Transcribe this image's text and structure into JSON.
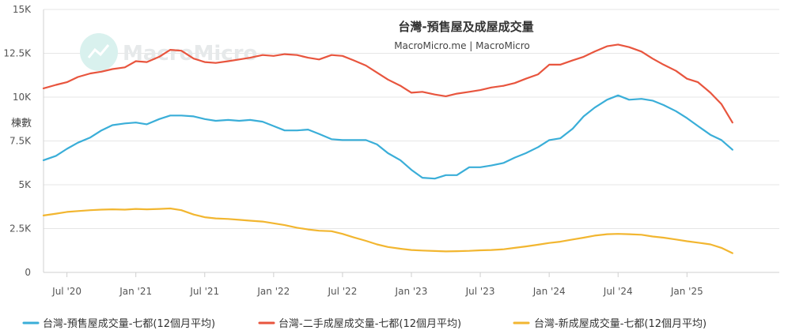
{
  "chart_data": {
    "type": "line",
    "title": "台灣-預售屋及成屋成交量",
    "subtitle": "MacroMicro.me | MacroMicro",
    "ylabel": "棟數",
    "watermark": "MacroMicro",
    "y_ticks": [
      "0",
      "2.5K",
      "5K",
      "7.5K",
      "10K",
      "12.5K",
      "15K"
    ],
    "ylim": [
      0,
      15000
    ],
    "x_ticks": [
      {
        "label": "Jul '20",
        "x": 2020.5
      },
      {
        "label": "Jan '21",
        "x": 2021.0
      },
      {
        "label": "Jul '21",
        "x": 2021.5
      },
      {
        "label": "Jan '22",
        "x": 2022.0
      },
      {
        "label": "Jul '22",
        "x": 2022.5
      },
      {
        "label": "Jan '23",
        "x": 2023.0
      },
      {
        "label": "Jul '23",
        "x": 2023.5
      },
      {
        "label": "Jan '24",
        "x": 2024.0
      },
      {
        "label": "Jul '24",
        "x": 2024.5
      },
      {
        "label": "Jan '25",
        "x": 2025.0
      }
    ],
    "xlim": [
      2020.33,
      2025.67
    ],
    "grid": true,
    "legend_position": "bottom",
    "series": [
      {
        "name": "台灣-預售屋成交量-七都(12個月平均)",
        "color": "#3aaed8",
        "points": [
          [
            2020.33,
            6400
          ],
          [
            2020.42,
            6650
          ],
          [
            2020.5,
            7050
          ],
          [
            2020.58,
            7400
          ],
          [
            2020.67,
            7700
          ],
          [
            2020.75,
            8100
          ],
          [
            2020.83,
            8400
          ],
          [
            2020.92,
            8500
          ],
          [
            2021.0,
            8550
          ],
          [
            2021.08,
            8450
          ],
          [
            2021.17,
            8750
          ],
          [
            2021.25,
            8950
          ],
          [
            2021.33,
            8950
          ],
          [
            2021.42,
            8900
          ],
          [
            2021.5,
            8750
          ],
          [
            2021.58,
            8650
          ],
          [
            2021.67,
            8700
          ],
          [
            2021.75,
            8650
          ],
          [
            2021.83,
            8700
          ],
          [
            2021.92,
            8600
          ],
          [
            2022.0,
            8350
          ],
          [
            2022.08,
            8100
          ],
          [
            2022.17,
            8100
          ],
          [
            2022.25,
            8150
          ],
          [
            2022.33,
            7900
          ],
          [
            2022.42,
            7600
          ],
          [
            2022.5,
            7550
          ],
          [
            2022.58,
            7550
          ],
          [
            2022.67,
            7550
          ],
          [
            2022.75,
            7300
          ],
          [
            2022.83,
            6800
          ],
          [
            2022.92,
            6400
          ],
          [
            2023.0,
            5850
          ],
          [
            2023.08,
            5400
          ],
          [
            2023.17,
            5350
          ],
          [
            2023.25,
            5550
          ],
          [
            2023.33,
            5550
          ],
          [
            2023.42,
            6000
          ],
          [
            2023.5,
            6000
          ],
          [
            2023.58,
            6100
          ],
          [
            2023.67,
            6250
          ],
          [
            2023.75,
            6550
          ],
          [
            2023.83,
            6800
          ],
          [
            2023.92,
            7150
          ],
          [
            2024.0,
            7550
          ],
          [
            2024.08,
            7650
          ],
          [
            2024.17,
            8200
          ],
          [
            2024.25,
            8900
          ],
          [
            2024.33,
            9400
          ],
          [
            2024.42,
            9850
          ],
          [
            2024.5,
            10100
          ],
          [
            2024.58,
            9850
          ],
          [
            2024.67,
            9900
          ],
          [
            2024.75,
            9800
          ],
          [
            2024.83,
            9550
          ],
          [
            2024.92,
            9200
          ],
          [
            2025.0,
            8800
          ],
          [
            2025.08,
            8350
          ],
          [
            2025.17,
            7850
          ],
          [
            2025.25,
            7550
          ],
          [
            2025.33,
            7000
          ]
        ]
      },
      {
        "name": "台灣-二手成屋成交量-七都(12個月平均)",
        "color": "#e8553e",
        "points": [
          [
            2020.33,
            10500
          ],
          [
            2020.42,
            10700
          ],
          [
            2020.5,
            10850
          ],
          [
            2020.58,
            11150
          ],
          [
            2020.67,
            11350
          ],
          [
            2020.75,
            11450
          ],
          [
            2020.83,
            11600
          ],
          [
            2020.92,
            11700
          ],
          [
            2021.0,
            12050
          ],
          [
            2021.08,
            12000
          ],
          [
            2021.17,
            12300
          ],
          [
            2021.25,
            12700
          ],
          [
            2021.33,
            12650
          ],
          [
            2021.42,
            12200
          ],
          [
            2021.5,
            12000
          ],
          [
            2021.58,
            11950
          ],
          [
            2021.67,
            12050
          ],
          [
            2021.75,
            12150
          ],
          [
            2021.83,
            12250
          ],
          [
            2021.92,
            12400
          ],
          [
            2022.0,
            12350
          ],
          [
            2022.08,
            12450
          ],
          [
            2022.17,
            12400
          ],
          [
            2022.25,
            12250
          ],
          [
            2022.33,
            12150
          ],
          [
            2022.42,
            12400
          ],
          [
            2022.5,
            12350
          ],
          [
            2022.58,
            12100
          ],
          [
            2022.67,
            11800
          ],
          [
            2022.75,
            11400
          ],
          [
            2022.83,
            11000
          ],
          [
            2022.92,
            10650
          ],
          [
            2023.0,
            10250
          ],
          [
            2023.08,
            10300
          ],
          [
            2023.17,
            10150
          ],
          [
            2023.25,
            10050
          ],
          [
            2023.33,
            10200
          ],
          [
            2023.42,
            10300
          ],
          [
            2023.5,
            10400
          ],
          [
            2023.58,
            10550
          ],
          [
            2023.67,
            10650
          ],
          [
            2023.75,
            10800
          ],
          [
            2023.83,
            11050
          ],
          [
            2023.92,
            11300
          ],
          [
            2024.0,
            11850
          ],
          [
            2024.08,
            11850
          ],
          [
            2024.17,
            12100
          ],
          [
            2024.25,
            12300
          ],
          [
            2024.33,
            12600
          ],
          [
            2024.42,
            12900
          ],
          [
            2024.5,
            13000
          ],
          [
            2024.58,
            12850
          ],
          [
            2024.67,
            12600
          ],
          [
            2024.75,
            12200
          ],
          [
            2024.83,
            11850
          ],
          [
            2024.92,
            11500
          ],
          [
            2025.0,
            11050
          ],
          [
            2025.08,
            10850
          ],
          [
            2025.17,
            10250
          ],
          [
            2025.25,
            9600
          ],
          [
            2025.33,
            8550
          ]
        ]
      },
      {
        "name": "台灣-新成屋成交量-七都(12個月平均)",
        "color": "#f2b630",
        "points": [
          [
            2020.33,
            3250
          ],
          [
            2020.42,
            3350
          ],
          [
            2020.5,
            3450
          ],
          [
            2020.58,
            3500
          ],
          [
            2020.67,
            3550
          ],
          [
            2020.75,
            3580
          ],
          [
            2020.83,
            3600
          ],
          [
            2020.92,
            3580
          ],
          [
            2021.0,
            3620
          ],
          [
            2021.08,
            3600
          ],
          [
            2021.17,
            3620
          ],
          [
            2021.25,
            3650
          ],
          [
            2021.33,
            3550
          ],
          [
            2021.42,
            3300
          ],
          [
            2021.5,
            3150
          ],
          [
            2021.58,
            3080
          ],
          [
            2021.67,
            3050
          ],
          [
            2021.75,
            3000
          ],
          [
            2021.83,
            2950
          ],
          [
            2021.92,
            2900
          ],
          [
            2022.0,
            2800
          ],
          [
            2022.08,
            2700
          ],
          [
            2022.17,
            2550
          ],
          [
            2022.25,
            2450
          ],
          [
            2022.33,
            2380
          ],
          [
            2022.42,
            2350
          ],
          [
            2022.5,
            2200
          ],
          [
            2022.58,
            2000
          ],
          [
            2022.67,
            1800
          ],
          [
            2022.75,
            1600
          ],
          [
            2022.83,
            1450
          ],
          [
            2022.92,
            1350
          ],
          [
            2023.0,
            1280
          ],
          [
            2023.08,
            1250
          ],
          [
            2023.17,
            1220
          ],
          [
            2023.25,
            1200
          ],
          [
            2023.33,
            1210
          ],
          [
            2023.42,
            1230
          ],
          [
            2023.5,
            1260
          ],
          [
            2023.58,
            1280
          ],
          [
            2023.67,
            1320
          ],
          [
            2023.75,
            1400
          ],
          [
            2023.83,
            1480
          ],
          [
            2023.92,
            1580
          ],
          [
            2024.0,
            1680
          ],
          [
            2024.08,
            1750
          ],
          [
            2024.17,
            1880
          ],
          [
            2024.25,
            1980
          ],
          [
            2024.33,
            2100
          ],
          [
            2024.42,
            2180
          ],
          [
            2024.5,
            2200
          ],
          [
            2024.58,
            2180
          ],
          [
            2024.67,
            2150
          ],
          [
            2024.75,
            2050
          ],
          [
            2024.83,
            1980
          ],
          [
            2024.92,
            1880
          ],
          [
            2025.0,
            1780
          ],
          [
            2025.08,
            1700
          ],
          [
            2025.17,
            1600
          ],
          [
            2025.25,
            1400
          ],
          [
            2025.33,
            1100
          ]
        ]
      }
    ]
  }
}
